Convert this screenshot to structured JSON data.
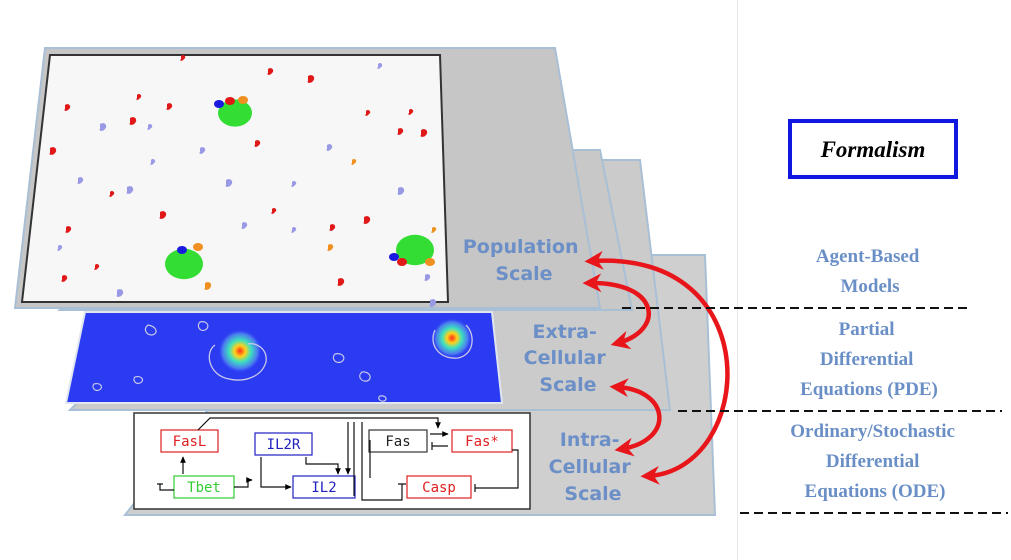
{
  "formalism_title": "Formalism",
  "scales": {
    "population": [
      "Population",
      "Scale"
    ],
    "extracellular": [
      "Extra-",
      "Cellular",
      "Scale"
    ],
    "intracellular": [
      "Intra-",
      "Cellular",
      "Scale"
    ]
  },
  "formalisms": {
    "agent_based": [
      "Agent-Based",
      "Models"
    ],
    "pde": [
      "Partial",
      "Differential",
      "Equations (PDE)"
    ],
    "ode": [
      "Ordinary/Stochastic",
      "Differential",
      "Equations (ODE)"
    ]
  },
  "network": {
    "fasl": "FasL",
    "il2r": "IL2R",
    "fas": "Fas",
    "fas_active": "Fas*",
    "tbet": "Tbet",
    "il2": "IL2",
    "casp": "Casp"
  },
  "colors": {
    "layer_gray": "#c9c9c9",
    "layer_border": "#9fb6cf",
    "pde_field": "#2b3bf2",
    "arrow_red": "#e8161b",
    "formalism_text": "#6a8fc6",
    "formalism_box": "#1018e0",
    "cell_red": "#e01818",
    "cell_lavender": "#9999e6",
    "cell_green": "#33dd33",
    "cell_orange": "#f09020",
    "cell_blue": "#1a1ae0"
  }
}
